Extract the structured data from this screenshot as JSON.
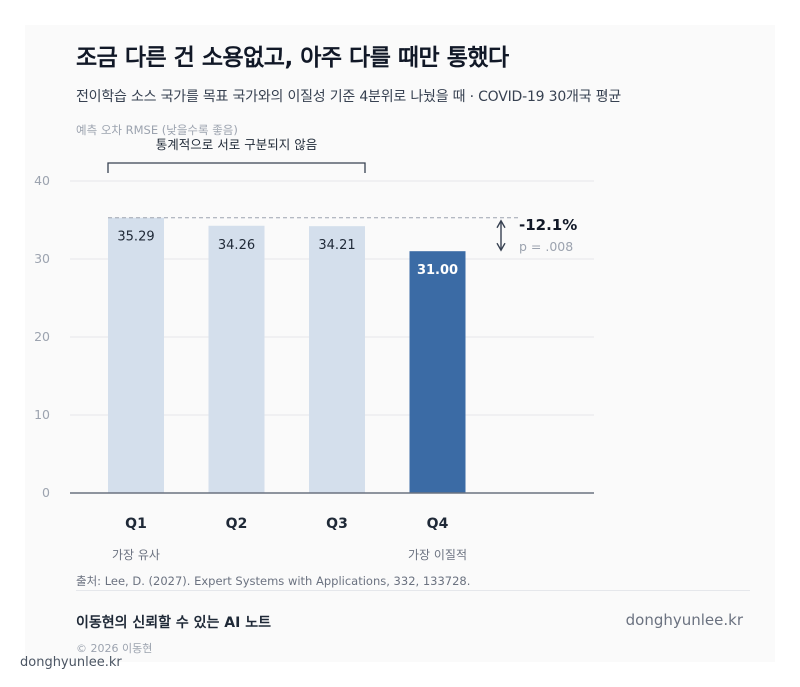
{
  "title": "조금 다른 건 소용없고, 아주 다를 때만 통했다",
  "subtitle": "전이학습 소스 국가를 목표 국가와의 이질성 기준 4분위로 나눴을 때 · COVID-19 30개국 평균",
  "chart_data": {
    "type": "bar",
    "ylabel": "예측 오차 RMSE (낮을수록 좋음)",
    "categories": [
      "Q1",
      "Q2",
      "Q3",
      "Q4"
    ],
    "values": [
      35.29,
      34.26,
      34.21,
      31.0
    ],
    "value_labels": [
      "35.29",
      "34.26",
      "34.21",
      "31.00"
    ],
    "category_sublabels": [
      "가장 유사",
      "",
      "",
      "가장 이질적"
    ],
    "ylim": [
      0,
      40
    ],
    "yticks": [
      0,
      10,
      20,
      30,
      40
    ],
    "ytick_labels": [
      "0",
      "10",
      "20",
      "30",
      "40"
    ],
    "grid": true,
    "highlight_index": 3,
    "bracket_label": "통계적으로 서로 구분되지 않음",
    "diff_label": "-12.1%",
    "p_label": "p = .008",
    "colors": {
      "bar": "#d4dfec",
      "highlight": "#3b6ba5",
      "axis": "#6b7280",
      "grid": "#e5e7eb",
      "text": "#1f2937",
      "muted": "#9ca3af"
    }
  },
  "footer": {
    "source": "출처: Lee, D. (2027). Expert Systems with Applications, 332, 133728.",
    "brand": "이동현의 신뢰할 수 있는 AI 노트",
    "site": "donghyunlee.kr",
    "copyright": "© 2026 이동현",
    "watermark": "donghyunlee.kr"
  }
}
